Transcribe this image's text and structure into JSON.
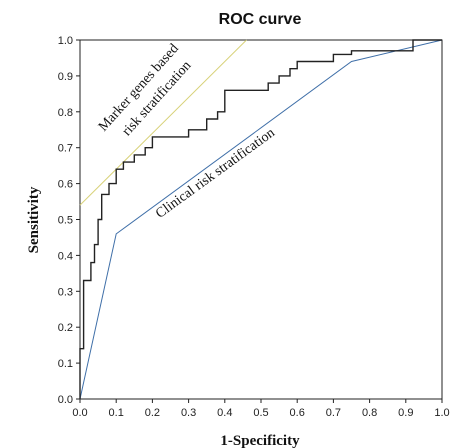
{
  "chart_data": {
    "type": "line",
    "title": "ROC curve",
    "xlabel": "1-Specificity",
    "ylabel": "Sensitivity",
    "xlim": [
      0.0,
      1.0
    ],
    "ylim": [
      0.0,
      1.0
    ],
    "xticks": [
      "0.0",
      "0.1",
      "0.2",
      "0.3",
      "0.4",
      "0.5",
      "0.6",
      "0.7",
      "0.8",
      "0.9",
      "1.0"
    ],
    "yticks": [
      "0.0",
      "0.1",
      "0.2",
      "0.3",
      "0.4",
      "0.5",
      "0.6",
      "0.7",
      "0.8",
      "0.9",
      "1.0"
    ],
    "grid": false,
    "series": [
      {
        "label": "Marker genes based risk stratification",
        "color": "#222222",
        "style": "step",
        "points": [
          [
            0.0,
            0.0
          ],
          [
            0.0,
            0.1
          ],
          [
            0.0,
            0.14
          ],
          [
            0.01,
            0.14
          ],
          [
            0.01,
            0.33
          ],
          [
            0.02,
            0.33
          ],
          [
            0.03,
            0.33
          ],
          [
            0.03,
            0.38
          ],
          [
            0.04,
            0.38
          ],
          [
            0.04,
            0.43
          ],
          [
            0.05,
            0.43
          ],
          [
            0.05,
            0.5
          ],
          [
            0.06,
            0.5
          ],
          [
            0.06,
            0.57
          ],
          [
            0.07,
            0.57
          ],
          [
            0.08,
            0.57
          ],
          [
            0.08,
            0.6
          ],
          [
            0.1,
            0.6
          ],
          [
            0.1,
            0.64
          ],
          [
            0.12,
            0.64
          ],
          [
            0.12,
            0.66
          ],
          [
            0.15,
            0.66
          ],
          [
            0.15,
            0.68
          ],
          [
            0.18,
            0.68
          ],
          [
            0.18,
            0.7
          ],
          [
            0.2,
            0.7
          ],
          [
            0.2,
            0.73
          ],
          [
            0.3,
            0.73
          ],
          [
            0.3,
            0.75
          ],
          [
            0.35,
            0.75
          ],
          [
            0.35,
            0.78
          ],
          [
            0.38,
            0.78
          ],
          [
            0.38,
            0.8
          ],
          [
            0.4,
            0.8
          ],
          [
            0.4,
            0.86
          ],
          [
            0.52,
            0.86
          ],
          [
            0.52,
            0.88
          ],
          [
            0.55,
            0.88
          ],
          [
            0.55,
            0.9
          ],
          [
            0.58,
            0.9
          ],
          [
            0.58,
            0.92
          ],
          [
            0.6,
            0.92
          ],
          [
            0.6,
            0.94
          ],
          [
            0.7,
            0.94
          ],
          [
            0.7,
            0.96
          ],
          [
            0.75,
            0.96
          ],
          [
            0.75,
            0.97
          ],
          [
            0.92,
            0.97
          ],
          [
            0.92,
            1.0
          ],
          [
            1.0,
            1.0
          ]
        ]
      },
      {
        "label": "Clinical risk stratification",
        "color": "#3f6fa8",
        "style": "line",
        "points": [
          [
            0.0,
            0.0
          ],
          [
            0.1,
            0.46
          ],
          [
            0.75,
            0.94
          ],
          [
            1.0,
            1.0
          ]
        ]
      },
      {
        "label": "",
        "color": "#d8d27a",
        "style": "line",
        "points": [
          [
            0.0,
            0.54
          ],
          [
            0.46,
            1.0
          ]
        ]
      }
    ],
    "annotations": [
      {
        "text": "Marker genes based",
        "x": 0.17,
        "y": 0.86,
        "angle": -48
      },
      {
        "text": "risk stratification",
        "x": 0.22,
        "y": 0.83,
        "angle": -48
      },
      {
        "text": "Clinical risk stratification",
        "x": 0.38,
        "y": 0.62,
        "angle": -36
      }
    ]
  }
}
